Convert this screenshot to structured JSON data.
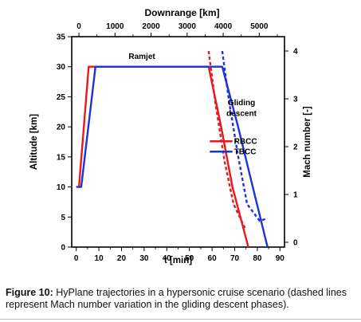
{
  "figure": {
    "caption_label": "Figure 10:",
    "caption_text": " HyPlane trajectories in a hypersonic cruise scenario (dashed lines represent Mach number variation in the gliding descent phases)."
  },
  "chart_data": {
    "type": "line",
    "title": "",
    "xlabel": "t [min]",
    "ylabel": "Altitude [km]",
    "x2label": "Downrange [km]",
    "y2label": "Mach number [-]",
    "xlim": [
      -2,
      92
    ],
    "ylim": [
      0,
      35
    ],
    "x2lim": [
      -200,
      5700
    ],
    "y2lim": [
      -0.1,
      4.3
    ],
    "x_ticks": [
      0,
      10,
      20,
      30,
      40,
      50,
      60,
      70,
      80,
      90
    ],
    "y_ticks": [
      0,
      5,
      10,
      15,
      20,
      25,
      30,
      35
    ],
    "x2_ticks": [
      0,
      1000,
      2000,
      3000,
      4000,
      5000
    ],
    "y2_ticks": [
      0,
      1,
      2,
      3,
      4
    ],
    "grid": false,
    "legend_position": "center",
    "annotations": [
      {
        "text": "Ramjet",
        "x": 29,
        "y": 31.3
      },
      {
        "text": "Gliding",
        "x": 73,
        "y": 23.6
      },
      {
        "text": "descent",
        "x": 73,
        "y": 21.8
      }
    ],
    "series": [
      {
        "name": "RBCC",
        "color": "#e8191c",
        "style": "solid",
        "axis": "altitude",
        "x": [
          1.2,
          5.5,
          58.5,
          64,
          69,
          76
        ],
        "y": [
          10,
          30,
          30,
          20,
          10,
          0
        ]
      },
      {
        "name": "TBCC",
        "color": "#1c33d8",
        "style": "solid",
        "axis": "altitude",
        "x": [
          0,
          2.2,
          8.5,
          64.5,
          71.5,
          78,
          84.5
        ],
        "y": [
          10,
          10,
          30,
          30,
          20,
          10,
          0
        ]
      },
      {
        "name": "",
        "color": "#e8191c",
        "style": "dashed",
        "axis": "mach",
        "x": [
          58.5,
          61.5,
          65.5,
          69.5,
          74.5
        ],
        "y": [
          4.0,
          2.9,
          1.7,
          0.8,
          0.3
        ]
      },
      {
        "name": "",
        "color": "#1c33d8",
        "style": "dashed",
        "axis": "mach",
        "x": [
          64.5,
          67.5,
          71.5,
          75.5,
          81,
          84.5
        ],
        "y": [
          4.0,
          2.95,
          1.8,
          0.8,
          0.45,
          0.5
        ]
      }
    ]
  }
}
